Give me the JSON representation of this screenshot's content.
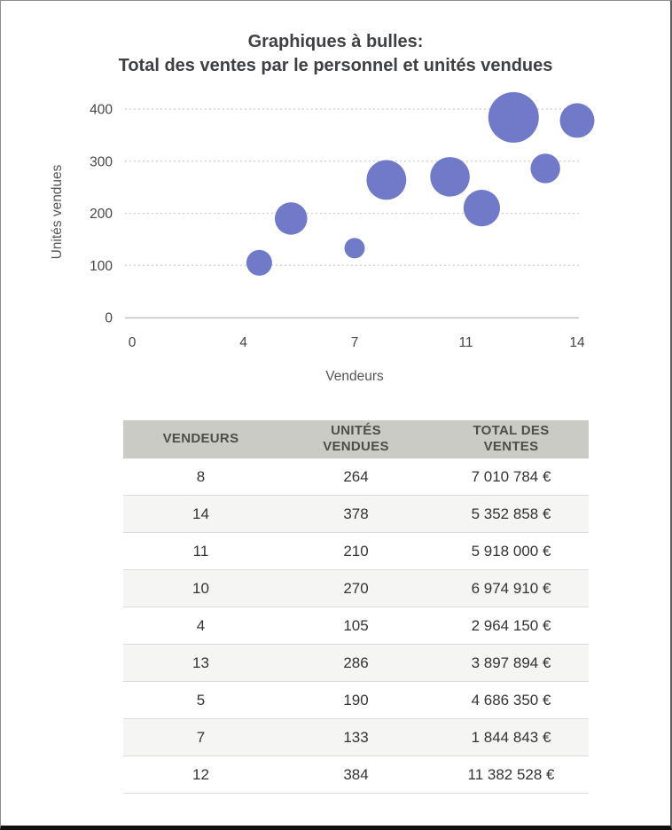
{
  "page": {
    "title_line1": "Graphiques à bulles:",
    "title_line2": "Total des ventes par le personnel et unités vendues"
  },
  "chart_data": {
    "type": "scatter",
    "subtype": "bubble",
    "title": "Graphiques à bulles: Total des ventes par le personnel et unités vendues",
    "xlabel": "Vendeurs",
    "ylabel": "Unités vendues",
    "xlim": [
      0,
      14
    ],
    "ylim": [
      0,
      400
    ],
    "x_ticks": {
      "positions": [
        0,
        3.5,
        7,
        10.5,
        14
      ],
      "labels": [
        "0",
        "4",
        "7",
        "11",
        "14"
      ]
    },
    "y_ticks": {
      "positions": [
        0,
        100,
        200,
        300,
        400
      ],
      "labels": [
        "0",
        "100",
        "200",
        "300",
        "400"
      ]
    },
    "grid": "horizontal-dotted",
    "legend": "none",
    "bubble_color": "#717AC9",
    "points": [
      {
        "vendeurs": 8,
        "unites_vendues": 264,
        "total_ventes": 7010784
      },
      {
        "vendeurs": 14,
        "unites_vendues": 378,
        "total_ventes": 5352858
      },
      {
        "vendeurs": 11,
        "unites_vendues": 210,
        "total_ventes": 5918000
      },
      {
        "vendeurs": 10,
        "unites_vendues": 270,
        "total_ventes": 6974910
      },
      {
        "vendeurs": 4,
        "unites_vendues": 105,
        "total_ventes": 2964150
      },
      {
        "vendeurs": 13,
        "unites_vendues": 286,
        "total_ventes": 3897894
      },
      {
        "vendeurs": 5,
        "unites_vendues": 190,
        "total_ventes": 4686350
      },
      {
        "vendeurs": 7,
        "unites_vendues": 133,
        "total_ventes": 1844843
      },
      {
        "vendeurs": 12,
        "unites_vendues": 384,
        "total_ventes": 11382528
      }
    ]
  },
  "table": {
    "headers": [
      "VENDEURS",
      "UNITÉS VENDUES",
      "TOTAL DES VENTES"
    ],
    "rows": [
      [
        "8",
        "264",
        "7 010 784 €"
      ],
      [
        "14",
        "378",
        "5 352 858 €"
      ],
      [
        "11",
        "210",
        "5 918 000 €"
      ],
      [
        "10",
        "270",
        "6 974 910 €"
      ],
      [
        "4",
        "105",
        "2 964 150 €"
      ],
      [
        "13",
        "286",
        "3 897 894 €"
      ],
      [
        "5",
        "190",
        "4 686 350 €"
      ],
      [
        "7",
        "133",
        "1 844 843 €"
      ],
      [
        "12",
        "384",
        "11 382 528 €"
      ]
    ]
  },
  "colors": {
    "bubble": "#717AC9",
    "title_text": "#3f4043",
    "axis_line": "#c2c2c2",
    "gridline": "#c6c6c6",
    "tick_label": "#454545",
    "axis_title": "#555555",
    "table_header_bg": "#cbcbc6",
    "table_alt_row_bg": "#f5f5f3"
  }
}
